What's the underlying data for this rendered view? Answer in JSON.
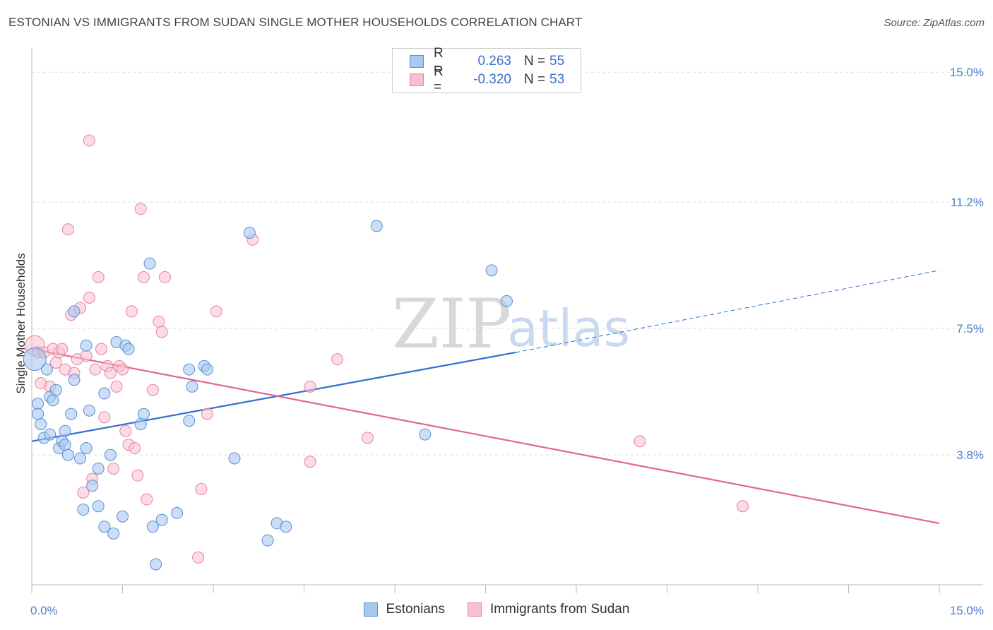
{
  "title": "ESTONIAN VS IMMIGRANTS FROM SUDAN SINGLE MOTHER HOUSEHOLDS CORRELATION CHART",
  "source": "Source: ZipAtlas.com",
  "watermark": {
    "zip": "ZIP",
    "atlas": "atlas"
  },
  "legend": {
    "rows": [
      {
        "r_label": "R =",
        "r_value": "0.263",
        "n_label": "N =",
        "n_value": "55"
      },
      {
        "r_label": "R =",
        "r_value": "-0.320",
        "n_label": "N =",
        "n_value": "53"
      }
    ]
  },
  "bottom_legend": {
    "estonians": "Estonians",
    "sudan": "Immigrants from Sudan"
  },
  "colors": {
    "estonians_fill": "#a8c8f0",
    "estonians_stroke": "#5a8ed6",
    "estonians_line": "#2f6fcf",
    "sudan_fill": "#f7bfd0",
    "sudan_stroke": "#e8829f",
    "sudan_line": "#e2668f",
    "tick": "#4a7fd0"
  },
  "chart_data": {
    "type": "scatter",
    "title": "ESTONIAN VS IMMIGRANTS FROM SUDAN SINGLE MOTHER HOUSEHOLDS CORRELATION CHART",
    "xlabel": "",
    "ylabel": "Single Mother Households",
    "xlim": [
      0,
      15
    ],
    "ylim": [
      0,
      15.5
    ],
    "x_tick_labels": [
      {
        "value": 0,
        "label": "0.0%"
      },
      {
        "value": 15,
        "label": "15.0%"
      }
    ],
    "y_tick_labels": [
      {
        "value": 3.8,
        "label": "3.8%"
      },
      {
        "value": 7.5,
        "label": "7.5%"
      },
      {
        "value": 11.2,
        "label": "11.2%"
      },
      {
        "value": 15.0,
        "label": "15.0%"
      }
    ],
    "series": [
      {
        "name": "Estonians",
        "r": 0.263,
        "n": 55,
        "trend": {
          "x0": 0,
          "y0": 4.2,
          "x1": 8.0,
          "y1": 6.8,
          "x_dash_end": 15,
          "y_dash_end": 9.2
        },
        "points": [
          [
            0.05,
            6.6
          ],
          [
            0.1,
            5.3
          ],
          [
            0.1,
            5.0
          ],
          [
            0.15,
            4.7
          ],
          [
            0.2,
            4.3
          ],
          [
            0.3,
            4.4
          ],
          [
            0.3,
            5.5
          ],
          [
            0.35,
            5.4
          ],
          [
            0.4,
            5.7
          ],
          [
            0.45,
            4.0
          ],
          [
            0.5,
            4.2
          ],
          [
            0.55,
            4.1
          ],
          [
            0.55,
            4.5
          ],
          [
            0.6,
            3.8
          ],
          [
            0.65,
            5.0
          ],
          [
            0.7,
            8.0
          ],
          [
            0.7,
            6.0
          ],
          [
            0.8,
            3.7
          ],
          [
            0.85,
            2.2
          ],
          [
            0.9,
            4.0
          ],
          [
            0.9,
            7.0
          ],
          [
            0.95,
            5.1
          ],
          [
            1.0,
            2.9
          ],
          [
            1.1,
            3.4
          ],
          [
            1.1,
            2.3
          ],
          [
            1.2,
            1.7
          ],
          [
            1.2,
            5.6
          ],
          [
            1.3,
            3.8
          ],
          [
            1.35,
            1.5
          ],
          [
            1.4,
            7.1
          ],
          [
            1.5,
            2.0
          ],
          [
            1.55,
            7.0
          ],
          [
            1.6,
            6.9
          ],
          [
            1.85,
            5.0
          ],
          [
            1.95,
            9.4
          ],
          [
            2.0,
            1.7
          ],
          [
            2.05,
            0.6
          ],
          [
            2.15,
            1.9
          ],
          [
            2.4,
            2.1
          ],
          [
            2.6,
            6.3
          ],
          [
            2.6,
            4.8
          ],
          [
            2.65,
            5.8
          ],
          [
            2.85,
            6.4
          ],
          [
            2.9,
            6.3
          ],
          [
            3.35,
            3.7
          ],
          [
            3.6,
            10.3
          ],
          [
            3.9,
            1.3
          ],
          [
            4.05,
            1.8
          ],
          [
            4.2,
            1.7
          ],
          [
            5.7,
            10.5
          ],
          [
            6.5,
            4.4
          ],
          [
            7.6,
            9.2
          ],
          [
            7.85,
            8.3
          ],
          [
            0.25,
            6.3
          ],
          [
            1.8,
            4.7
          ]
        ]
      },
      {
        "name": "Immigrants from Sudan",
        "r": -0.32,
        "n": 53,
        "trend": {
          "x0": 0,
          "y0": 6.9,
          "x1": 15,
          "y1": 1.8
        },
        "points": [
          [
            0.05,
            7.0
          ],
          [
            0.1,
            6.8
          ],
          [
            0.15,
            5.9
          ],
          [
            0.2,
            6.8
          ],
          [
            0.3,
            5.8
          ],
          [
            0.35,
            6.9
          ],
          [
            0.4,
            6.5
          ],
          [
            0.45,
            6.8
          ],
          [
            0.5,
            6.9
          ],
          [
            0.55,
            6.3
          ],
          [
            0.6,
            10.4
          ],
          [
            0.65,
            7.9
          ],
          [
            0.7,
            6.2
          ],
          [
            0.75,
            6.6
          ],
          [
            0.8,
            8.1
          ],
          [
            0.85,
            2.7
          ],
          [
            0.9,
            6.7
          ],
          [
            0.95,
            8.4
          ],
          [
            0.95,
            13.0
          ],
          [
            1.0,
            3.1
          ],
          [
            1.05,
            6.3
          ],
          [
            1.1,
            9.0
          ],
          [
            1.15,
            6.9
          ],
          [
            1.2,
            4.9
          ],
          [
            1.25,
            6.4
          ],
          [
            1.3,
            6.2
          ],
          [
            1.35,
            3.4
          ],
          [
            1.4,
            5.8
          ],
          [
            1.45,
            6.4
          ],
          [
            1.5,
            6.3
          ],
          [
            1.55,
            4.5
          ],
          [
            1.6,
            4.1
          ],
          [
            1.65,
            8.0
          ],
          [
            1.7,
            4.0
          ],
          [
            1.75,
            3.2
          ],
          [
            1.8,
            11.0
          ],
          [
            1.85,
            9.0
          ],
          [
            1.9,
            2.5
          ],
          [
            2.0,
            5.7
          ],
          [
            2.1,
            7.7
          ],
          [
            2.15,
            7.4
          ],
          [
            2.2,
            9.0
          ],
          [
            2.75,
            0.8
          ],
          [
            2.8,
            2.8
          ],
          [
            2.9,
            5.0
          ],
          [
            3.05,
            8.0
          ],
          [
            3.65,
            10.1
          ],
          [
            4.6,
            3.6
          ],
          [
            4.6,
            5.8
          ],
          [
            5.05,
            6.6
          ],
          [
            5.55,
            4.3
          ],
          [
            10.05,
            4.2
          ],
          [
            11.75,
            2.3
          ]
        ]
      }
    ]
  }
}
